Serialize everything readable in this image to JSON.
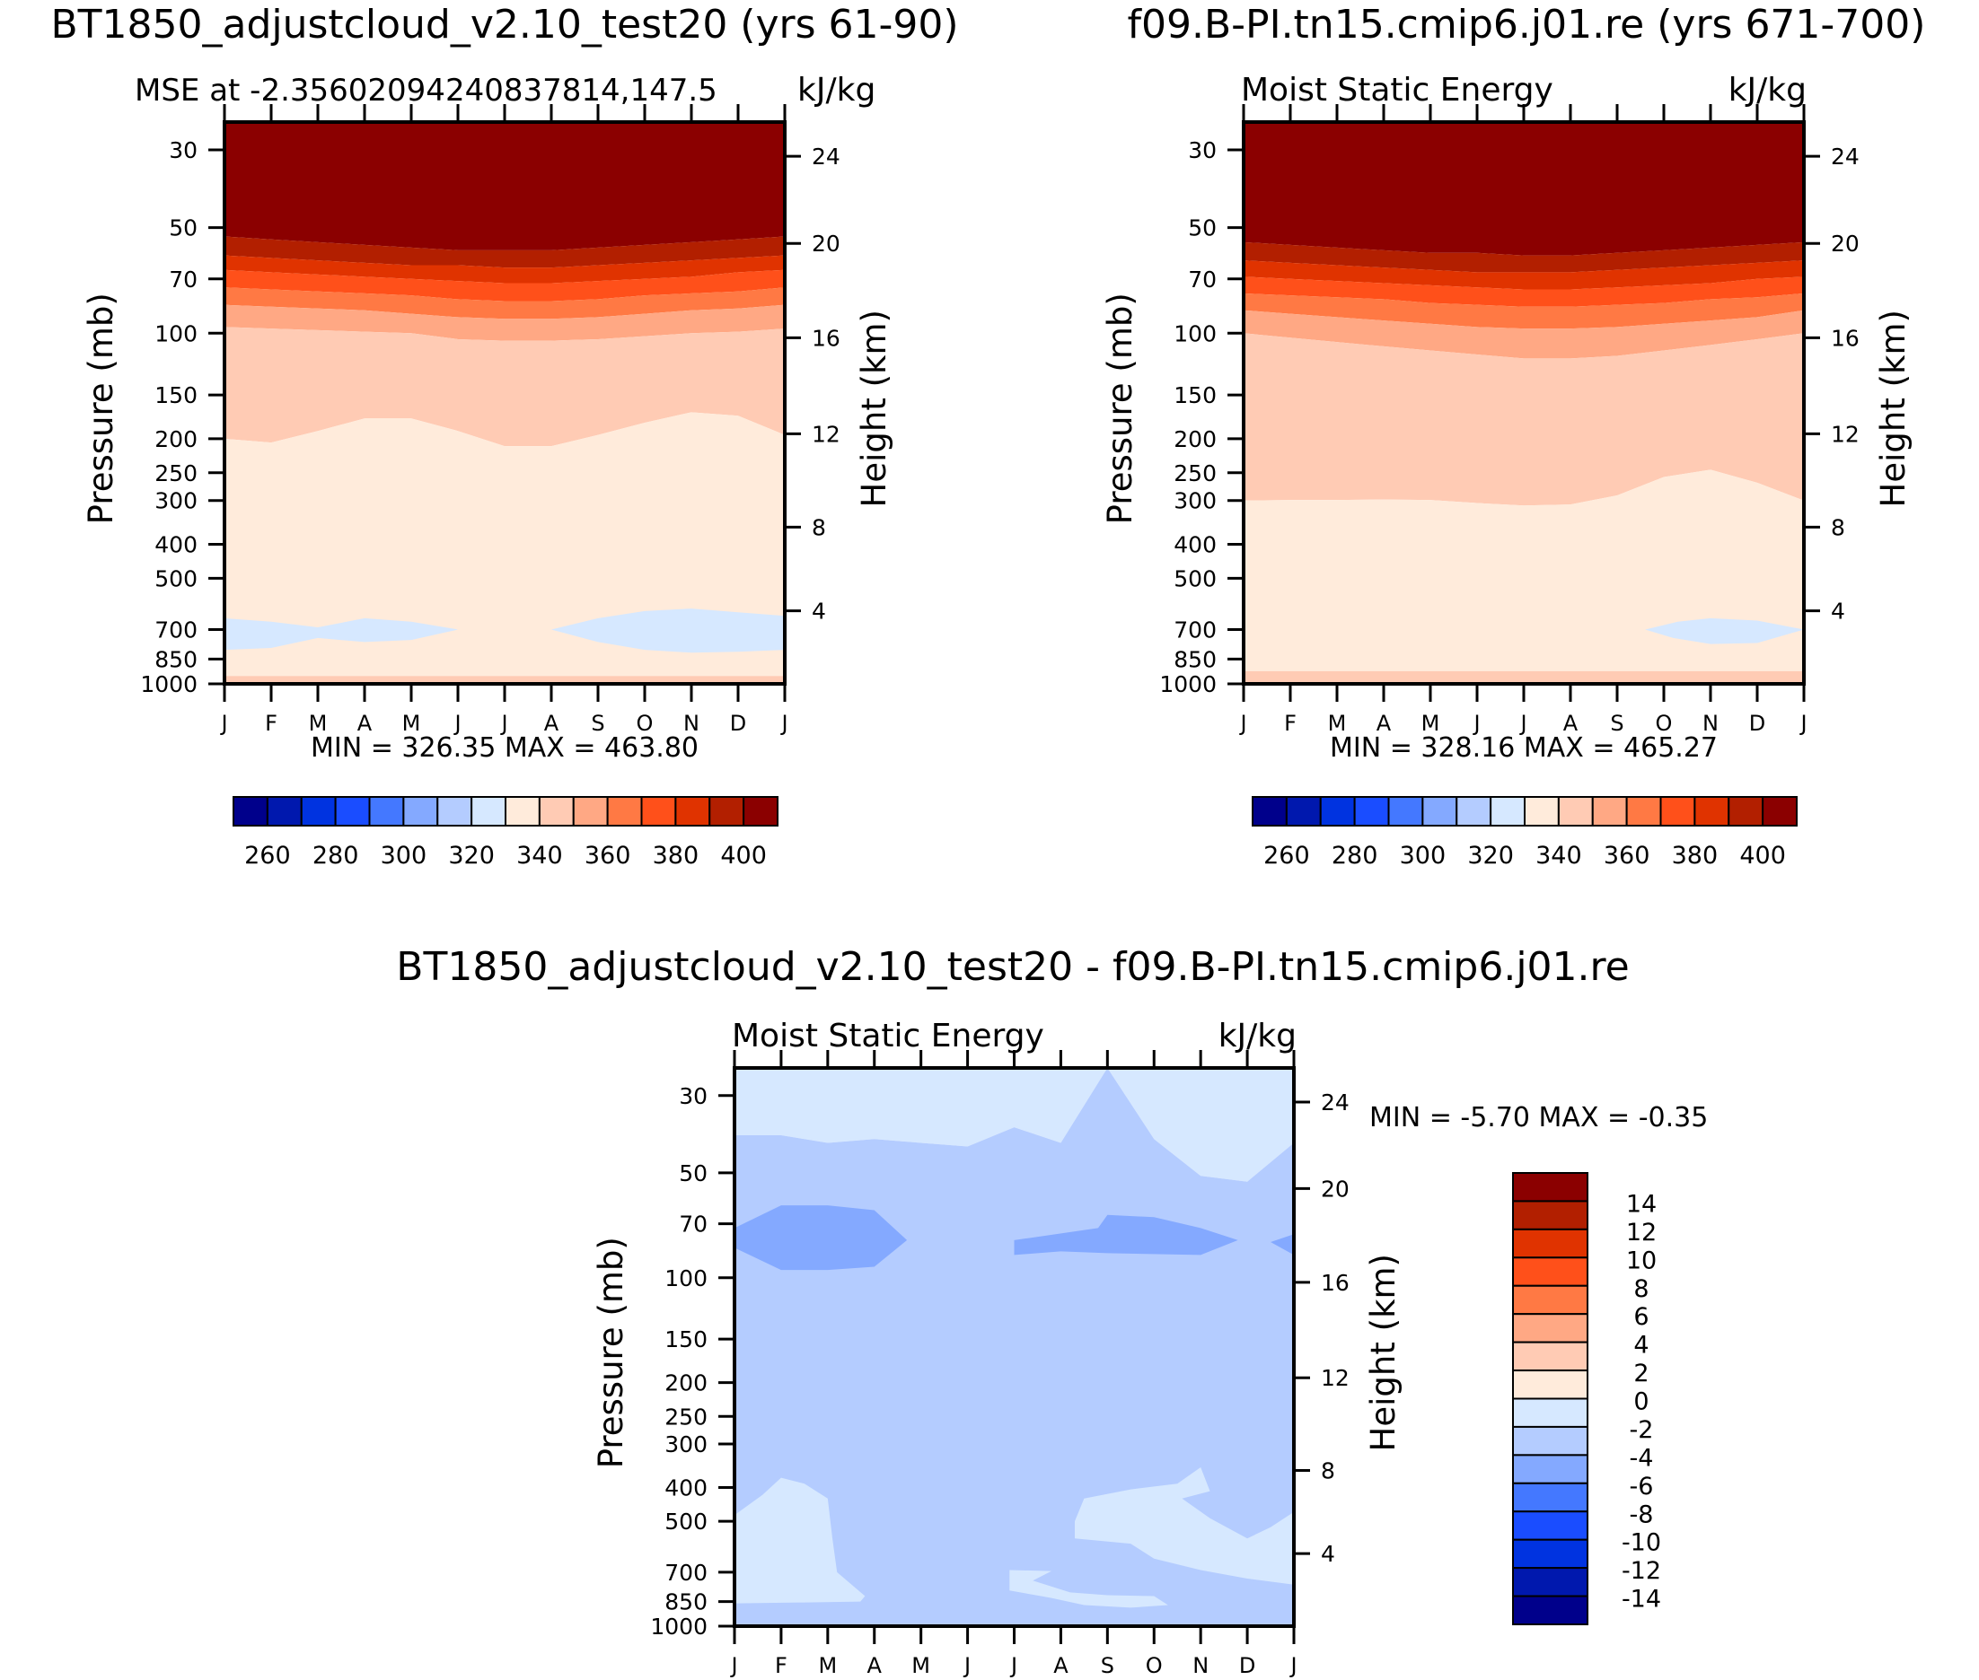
{
  "colors": [
    "#00008B",
    "#0018AE",
    "#0033E0",
    "#1A4DFF",
    "#4478FF",
    "#84A9FF",
    "#B4CCFF",
    "#D6E8FF",
    "#FFEBDB",
    "#FFCBB4",
    "#FFA884",
    "#FF7944",
    "#FF501A",
    "#E03300",
    "#B21F00",
    "#8B0000"
  ],
  "chart_data": [
    {
      "type": "heatmap",
      "title": "BT1850_adjustcloud_v2.10_test20 (yrs 61-90)",
      "subtitle": "MSE at -2.35602094240837814,147.5",
      "units": "kJ/kg",
      "minmax": "MIN =  326.35  MAX =  463.80",
      "ylabel": "Pressure (mb)",
      "ylabel_right": "Height (km)",
      "xticks": [
        "J",
        "F",
        "M",
        "A",
        "M",
        "J",
        "J",
        "A",
        "S",
        "O",
        "N",
        "D",
        "J"
      ],
      "pressure_ticks": [
        "30",
        "50",
        "70",
        "100",
        "150",
        "200",
        "250",
        "300",
        "400",
        "500",
        "700",
        "850",
        "1000"
      ],
      "height_ticks": [
        "24",
        "20",
        "16",
        "12",
        "8",
        "4"
      ],
      "colorbar": {
        "levels_start": 250,
        "step": 10,
        "labels": [
          "260",
          "280",
          "300",
          "320",
          "340",
          "360",
          "380",
          "400"
        ]
      },
      "bands": [
        {
          "color_index": 15,
          "lower": [
            53,
            54,
            55,
            56,
            57,
            58,
            58,
            58,
            57,
            56,
            55,
            54,
            53
          ]
        },
        {
          "color_index": 14,
          "lower": [
            60,
            61,
            62,
            63,
            64,
            64,
            65,
            65,
            64,
            63,
            62,
            61,
            60
          ]
        },
        {
          "color_index": 13,
          "lower": [
            66,
            67,
            68,
            69,
            70,
            71,
            72,
            72,
            71,
            70,
            69,
            67,
            66
          ]
        },
        {
          "color_index": 12,
          "lower": [
            74,
            75,
            76,
            77,
            78,
            80,
            81,
            81,
            80,
            78,
            77,
            76,
            74
          ]
        },
        {
          "color_index": 11,
          "lower": [
            83,
            84,
            85,
            86,
            88,
            90,
            91,
            91,
            90,
            88,
            86,
            85,
            83
          ]
        },
        {
          "color_index": 10,
          "lower": [
            96,
            97,
            98,
            99,
            100,
            104,
            105,
            105,
            104,
            102,
            100,
            99,
            97
          ]
        },
        {
          "color_index": 9,
          "lower": [
            200,
            205,
            190,
            175,
            175,
            190,
            210,
            210,
            195,
            180,
            168,
            172,
            195
          ]
        },
        {
          "color_index": 8,
          "lower": [
            950,
            950,
            950,
            950,
            950,
            950,
            950,
            950,
            950,
            950,
            950,
            950,
            950
          ]
        },
        {
          "color_index": 9,
          "lower": [
            1000,
            1000,
            1000,
            1000,
            1000,
            1000,
            1000,
            1000,
            1000,
            1000,
            1000,
            1000,
            1000
          ]
        }
      ],
      "patches": [
        {
          "color_index": 7,
          "points": [
            [
              0,
              650
            ],
            [
              1,
              665
            ],
            [
              2,
              690
            ],
            [
              3,
              650
            ],
            [
              4,
              665
            ],
            [
              5,
              700
            ],
            [
              4,
              750
            ],
            [
              3,
              760
            ],
            [
              2,
              740
            ],
            [
              1,
              790
            ],
            [
              0,
              800
            ]
          ]
        },
        {
          "color_index": 7,
          "points": [
            [
              7,
              700
            ],
            [
              8,
              650
            ],
            [
              9,
              620
            ],
            [
              10,
              610
            ],
            [
              11,
              625
            ],
            [
              12,
              640
            ],
            [
              12,
              800
            ],
            [
              11,
              810
            ],
            [
              10,
              815
            ],
            [
              9,
              800
            ],
            [
              8,
              760
            ]
          ]
        }
      ]
    },
    {
      "type": "heatmap",
      "title": "f09.B-PI.tn15.cmip6.j01.re (yrs 671-700)",
      "subtitle": "Moist Static Energy",
      "units": "kJ/kg",
      "minmax": "MIN =  328.16  MAX =  465.27",
      "ylabel": "Pressure (mb)",
      "ylabel_right": "Height (km)",
      "xticks": [
        "J",
        "F",
        "M",
        "A",
        "M",
        "J",
        "J",
        "A",
        "S",
        "O",
        "N",
        "D",
        "J"
      ],
      "pressure_ticks": [
        "30",
        "50",
        "70",
        "100",
        "150",
        "200",
        "250",
        "300",
        "400",
        "500",
        "700",
        "850",
        "1000"
      ],
      "height_ticks": [
        "24",
        "20",
        "16",
        "12",
        "8",
        "4"
      ],
      "colorbar": {
        "levels_start": 250,
        "step": 10,
        "labels": [
          "260",
          "280",
          "300",
          "320",
          "340",
          "360",
          "380",
          "400"
        ]
      },
      "bands": [
        {
          "color_index": 15,
          "lower": [
            55,
            56,
            57,
            58,
            59,
            59,
            60,
            60,
            59,
            58,
            57,
            56,
            55
          ]
        },
        {
          "color_index": 14,
          "lower": [
            62,
            63,
            64,
            65,
            66,
            67,
            67,
            67,
            66,
            65,
            64,
            63,
            62
          ]
        },
        {
          "color_index": 13,
          "lower": [
            69,
            70,
            71,
            72,
            73,
            74,
            75,
            75,
            74,
            73,
            72,
            70,
            69
          ]
        },
        {
          "color_index": 12,
          "lower": [
            77,
            78,
            79,
            80,
            82,
            83,
            84,
            84,
            83,
            82,
            80,
            79,
            77
          ]
        },
        {
          "color_index": 11,
          "lower": [
            86,
            88,
            90,
            92,
            94,
            96,
            97,
            97,
            96,
            94,
            92,
            90,
            86
          ]
        },
        {
          "color_index": 10,
          "lower": [
            100,
            103,
            106,
            109,
            112,
            115,
            118,
            118,
            116,
            112,
            108,
            104,
            100
          ]
        },
        {
          "color_index": 9,
          "lower": [
            300,
            299,
            299,
            298,
            299,
            305,
            310,
            308,
            290,
            257,
            245,
            267,
            300
          ]
        },
        {
          "color_index": 8,
          "lower": [
            920,
            920,
            920,
            920,
            920,
            920,
            920,
            920,
            920,
            920,
            920,
            920,
            920
          ]
        },
        {
          "color_index": 9,
          "lower": [
            1000,
            1000,
            1000,
            1000,
            1000,
            1000,
            1000,
            1000,
            1000,
            1000,
            1000,
            1000,
            1000
          ]
        }
      ],
      "patches": [
        {
          "color_index": 7,
          "points": [
            [
              8.6,
              700
            ],
            [
              9.3,
              665
            ],
            [
              10,
              650
            ],
            [
              11,
              660
            ],
            [
              12,
              700
            ],
            [
              11,
              765
            ],
            [
              10,
              770
            ],
            [
              9.2,
              740
            ]
          ]
        }
      ]
    },
    {
      "type": "heatmap",
      "title": "BT1850_adjustcloud_v2.10_test20 - f09.B-PI.tn15.cmip6.j01.re",
      "subtitle": "Moist Static Energy",
      "units": "kJ/kg",
      "minmax": "MIN =   -5.70  MAX =   -0.35",
      "ylabel": "Pressure (mb)",
      "ylabel_right": "Height (km)",
      "xticks": [
        "J",
        "F",
        "M",
        "A",
        "M",
        "J",
        "J",
        "A",
        "S",
        "O",
        "N",
        "D",
        "J"
      ],
      "pressure_ticks": [
        "30",
        "50",
        "70",
        "100",
        "150",
        "200",
        "250",
        "300",
        "400",
        "500",
        "700",
        "850",
        "1000"
      ],
      "height_ticks": [
        "24",
        "20",
        "16",
        "12",
        "8",
        "4"
      ],
      "colorbar": {
        "levels_start": -16,
        "step": 2,
        "labels": [
          "14",
          "12",
          "10",
          "8",
          "6",
          "4",
          "2",
          "0",
          "-2",
          "-4",
          "-6",
          "-8",
          "-10",
          "-12",
          "-14"
        ]
      },
      "bands": [
        {
          "color_index": 7,
          "lower": [
            39,
            39,
            41,
            40,
            41,
            42,
            37,
            41,
            25,
            40,
            51,
            53,
            41
          ]
        },
        {
          "color_index": 6,
          "lower": [
            1000,
            1000,
            1000,
            1000,
            1000,
            1000,
            1000,
            1000,
            1000,
            1000,
            1000,
            1000,
            1000
          ]
        }
      ],
      "patches": [
        {
          "color_index": 5,
          "points": [
            [
              0,
              72
            ],
            [
              1,
              62
            ],
            [
              2,
              62
            ],
            [
              3,
              64
            ],
            [
              3.7,
              78
            ],
            [
              3,
              93
            ],
            [
              2,
              95
            ],
            [
              1,
              95
            ],
            [
              0,
              82
            ]
          ]
        },
        {
          "color_index": 5,
          "points": [
            [
              6,
              78
            ],
            [
              7.8,
              72
            ],
            [
              8,
              66
            ],
            [
              9,
              67
            ],
            [
              10,
              72
            ],
            [
              10.8,
              78
            ],
            [
              10,
              86
            ],
            [
              8,
              85
            ],
            [
              7,
              84
            ],
            [
              6,
              86
            ]
          ]
        },
        {
          "color_index": 5,
          "points": [
            [
              11.5,
              79
            ],
            [
              12,
              75
            ],
            [
              12,
              86
            ]
          ]
        },
        {
          "color_index": 7,
          "points": [
            [
              0,
              480
            ],
            [
              0.6,
              420
            ],
            [
              1,
              375
            ],
            [
              1.5,
              390
            ],
            [
              2,
              430
            ],
            [
              2.1,
              560
            ],
            [
              2.2,
              700
            ],
            [
              2.8,
              820
            ],
            [
              2.7,
              850
            ],
            [
              1.5,
              855
            ],
            [
              0,
              860
            ]
          ]
        },
        {
          "color_index": 7,
          "points": [
            [
              5.9,
              690
            ],
            [
              6.8,
              695
            ],
            [
              6.4,
              740
            ],
            [
              7.2,
              800
            ],
            [
              8,
              815
            ],
            [
              9,
              820
            ],
            [
              9.3,
              870
            ],
            [
              8.5,
              885
            ],
            [
              7.5,
              870
            ],
            [
              6.8,
              830
            ],
            [
              5.9,
              790
            ]
          ]
        },
        {
          "color_index": 7,
          "points": [
            [
              7.3,
              500
            ],
            [
              7.5,
              430
            ],
            [
              8.5,
              405
            ],
            [
              9.5,
              390
            ],
            [
              10,
              350
            ],
            [
              10.2,
              410
            ],
            [
              9.6,
              430
            ],
            [
              10.2,
              490
            ],
            [
              11,
              560
            ],
            [
              11.5,
              520
            ],
            [
              12,
              470
            ],
            [
              12,
              760
            ],
            [
              11,
              730
            ],
            [
              10,
              690
            ],
            [
              9,
              640
            ],
            [
              8.5,
              580
            ],
            [
              7.3,
              560
            ]
          ]
        }
      ]
    }
  ]
}
